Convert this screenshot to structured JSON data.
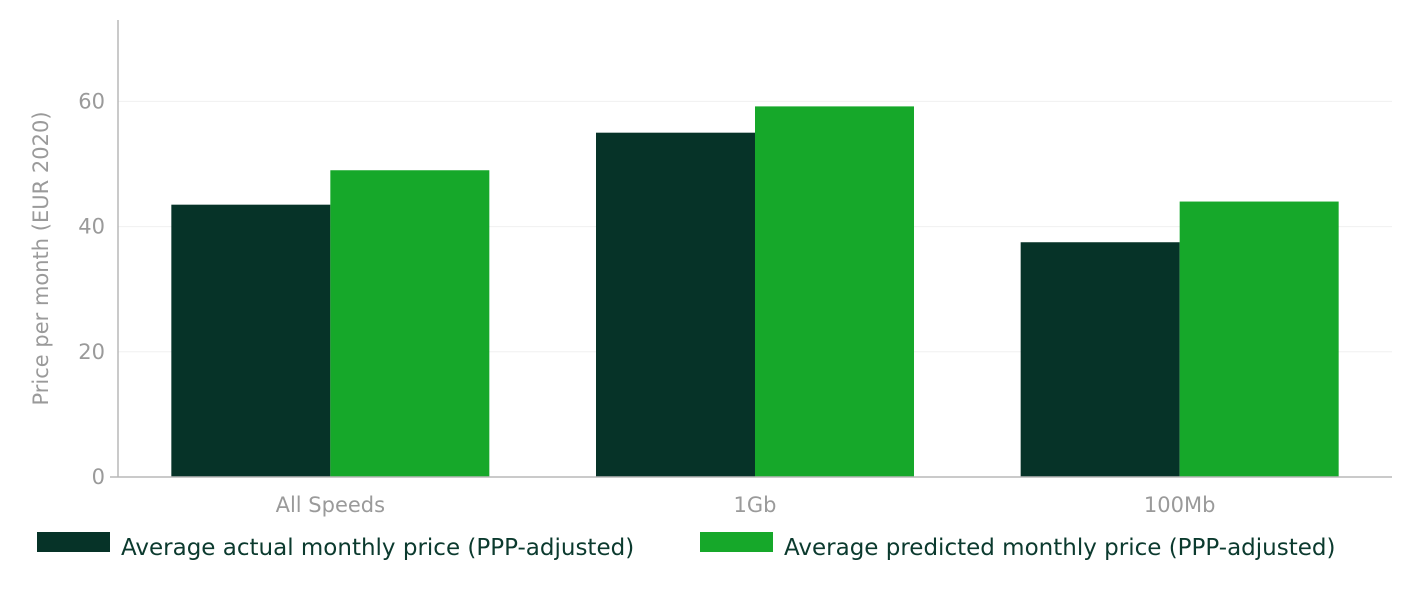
{
  "chart_data": {
    "type": "bar",
    "categories": [
      "All Speeds",
      "1Gb",
      "100Mb"
    ],
    "series": [
      {
        "name": "Average actual monthly price (PPP-adjusted)",
        "color": "#063328",
        "values": [
          43.5,
          55.0,
          37.5
        ]
      },
      {
        "name": "Average predicted monthly price (PPP-adjusted)",
        "color": "#16a82a",
        "values": [
          49.0,
          59.2,
          44.0
        ]
      }
    ],
    "title": "",
    "xlabel": "",
    "ylabel": "Price per month (EUR 2020)",
    "ylim": [
      0,
      73
    ],
    "yticks": [
      0,
      20,
      40,
      60
    ],
    "grid": true,
    "legend_position": "bottom-left"
  }
}
